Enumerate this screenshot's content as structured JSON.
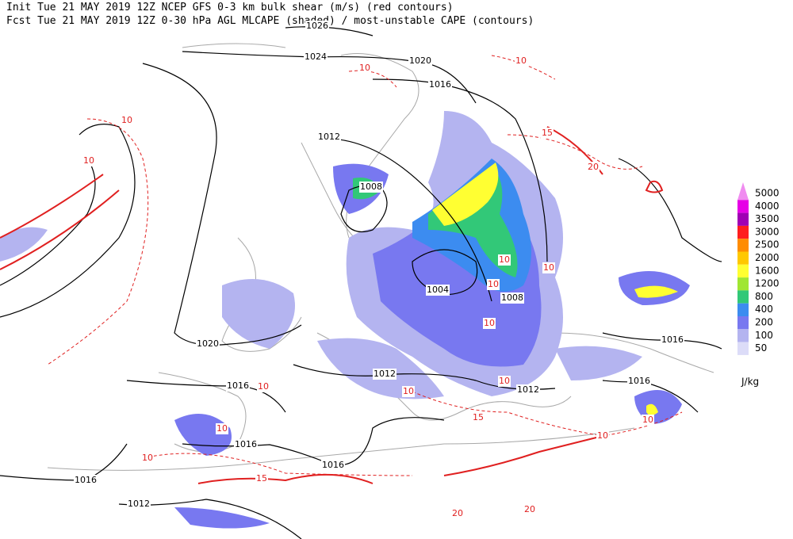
{
  "header": {
    "line1": "Init  Tue 21 MAY 2019 12Z  NCEP GFS 0-3 km bulk shear (m/s) (red contours)",
    "line2": "Fcst Tue 21 MAY 2019 12Z  0-30 hPa AGL MLCAPE (shaded) / most-unstable CAPE (contours)"
  },
  "legend": {
    "levels": [
      5000,
      4000,
      3500,
      3000,
      2500,
      2000,
      1600,
      1200,
      800,
      400,
      200,
      100,
      50
    ],
    "colors": [
      "#f08cf0",
      "#e600e6",
      "#a000b4",
      "#ff1e1e",
      "#ff8c00",
      "#ffc800",
      "#ffff32",
      "#a0e632",
      "#32c878",
      "#3c8cf0",
      "#7878f0",
      "#b4b4f0",
      "#dcdcf8"
    ],
    "unit": "J/kg"
  },
  "pressure_labels": [
    1026,
    1024,
    1020,
    1016,
    1012,
    1008,
    1004,
    1008,
    1020,
    1016,
    1012,
    1012,
    1016,
    1016,
    1016,
    1016,
    1016,
    1012
  ],
  "shear_labels": [
    10,
    10,
    10,
    10,
    10,
    10,
    10,
    10,
    10,
    10,
    10,
    10,
    10,
    10,
    10,
    15,
    15,
    15,
    20,
    20,
    20
  ]
}
